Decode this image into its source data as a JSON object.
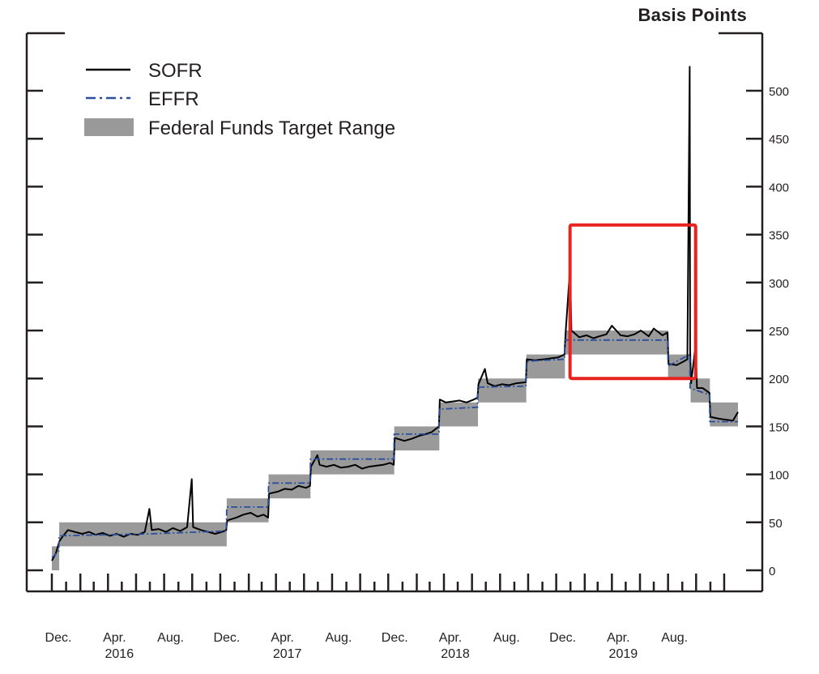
{
  "chart_data": {
    "type": "line",
    "title": "",
    "ylabel": "Basis Points",
    "ylim": [
      0,
      550
    ],
    "yticks": [
      0,
      50,
      100,
      150,
      200,
      250,
      300,
      350,
      400,
      450,
      500
    ],
    "xlim": [
      "2015-12-01",
      "2019-12-31"
    ],
    "x_tick_labels": [
      {
        "date": "2015-12-01",
        "month": "Dec.",
        "year": ""
      },
      {
        "date": "2016-04-01",
        "month": "Apr.",
        "year": "2016"
      },
      {
        "date": "2016-08-01",
        "month": "Aug.",
        "year": ""
      },
      {
        "date": "2016-12-01",
        "month": "Dec.",
        "year": ""
      },
      {
        "date": "2017-04-01",
        "month": "Apr.",
        "year": "2017"
      },
      {
        "date": "2017-08-01",
        "month": "Aug.",
        "year": ""
      },
      {
        "date": "2017-12-01",
        "month": "Dec.",
        "year": ""
      },
      {
        "date": "2018-04-01",
        "month": "Apr.",
        "year": "2018"
      },
      {
        "date": "2018-08-01",
        "month": "Aug.",
        "year": ""
      },
      {
        "date": "2018-12-01",
        "month": "Dec.",
        "year": ""
      },
      {
        "date": "2019-04-01",
        "month": "Apr.",
        "year": "2019"
      },
      {
        "date": "2019-08-01",
        "month": "Aug.",
        "year": ""
      }
    ],
    "legend": {
      "position": "top-left",
      "entries": [
        {
          "label": "SOFR",
          "style": "solid",
          "color": "#000000"
        },
        {
          "label": "EFFR",
          "style": "dash-dot",
          "color": "#2b4fa0"
        },
        {
          "label": "Federal Funds Target Range",
          "style": "band",
          "color": "#9a9a9a"
        }
      ]
    },
    "target_range": [
      {
        "start": "2015-12-01",
        "end": "2015-12-17",
        "low": 0,
        "high": 25
      },
      {
        "start": "2015-12-17",
        "end": "2016-12-15",
        "low": 25,
        "high": 50
      },
      {
        "start": "2016-12-15",
        "end": "2017-03-16",
        "low": 50,
        "high": 75
      },
      {
        "start": "2017-03-16",
        "end": "2017-06-15",
        "low": 75,
        "high": 100
      },
      {
        "start": "2017-06-15",
        "end": "2017-12-14",
        "low": 100,
        "high": 125
      },
      {
        "start": "2017-12-14",
        "end": "2018-03-22",
        "low": 125,
        "high": 150
      },
      {
        "start": "2018-03-22",
        "end": "2018-06-14",
        "low": 150,
        "high": 175
      },
      {
        "start": "2018-06-14",
        "end": "2018-09-27",
        "low": 175,
        "high": 200
      },
      {
        "start": "2018-09-27",
        "end": "2018-12-20",
        "low": 200,
        "high": 225
      },
      {
        "start": "2018-12-20",
        "end": "2019-08-01",
        "low": 225,
        "high": 250
      },
      {
        "start": "2019-08-01",
        "end": "2019-09-19",
        "low": 200,
        "high": 225
      },
      {
        "start": "2019-09-19",
        "end": "2019-10-31",
        "low": 175,
        "high": 200
      },
      {
        "start": "2019-10-31",
        "end": "2019-12-31",
        "low": 150,
        "high": 175
      }
    ],
    "series": [
      {
        "name": "SOFR",
        "points": [
          [
            "2015-12-01",
            10
          ],
          [
            "2015-12-10",
            18
          ],
          [
            "2015-12-17",
            30
          ],
          [
            "2015-12-24",
            35
          ],
          [
            "2016-01-05",
            42
          ],
          [
            "2016-01-20",
            40
          ],
          [
            "2016-02-05",
            38
          ],
          [
            "2016-02-20",
            40
          ],
          [
            "2016-03-05",
            37
          ],
          [
            "2016-03-20",
            39
          ],
          [
            "2016-04-05",
            36
          ],
          [
            "2016-04-20",
            38
          ],
          [
            "2016-05-05",
            35
          ],
          [
            "2016-05-20",
            38
          ],
          [
            "2016-06-05",
            37
          ],
          [
            "2016-06-20",
            40
          ],
          [
            "2016-06-30",
            64
          ],
          [
            "2016-07-05",
            42
          ],
          [
            "2016-07-20",
            43
          ],
          [
            "2016-08-05",
            40
          ],
          [
            "2016-08-20",
            44
          ],
          [
            "2016-09-05",
            41
          ],
          [
            "2016-09-20",
            45
          ],
          [
            "2016-09-30",
            95
          ],
          [
            "2016-10-03",
            45
          ],
          [
            "2016-10-20",
            42
          ],
          [
            "2016-11-05",
            40
          ],
          [
            "2016-11-20",
            38
          ],
          [
            "2016-12-05",
            40
          ],
          [
            "2016-12-14",
            42
          ],
          [
            "2016-12-16",
            52
          ],
          [
            "2017-01-05",
            55
          ],
          [
            "2017-01-20",
            58
          ],
          [
            "2017-02-05",
            60
          ],
          [
            "2017-02-20",
            56
          ],
          [
            "2017-03-05",
            58
          ],
          [
            "2017-03-15",
            55
          ],
          [
            "2017-03-17",
            80
          ],
          [
            "2017-04-05",
            82
          ],
          [
            "2017-04-20",
            85
          ],
          [
            "2017-05-05",
            84
          ],
          [
            "2017-05-20",
            88
          ],
          [
            "2017-06-05",
            86
          ],
          [
            "2017-06-14",
            88
          ],
          [
            "2017-06-16",
            108
          ],
          [
            "2017-06-30",
            120
          ],
          [
            "2017-07-05",
            110
          ],
          [
            "2017-07-20",
            108
          ],
          [
            "2017-08-05",
            110
          ],
          [
            "2017-08-20",
            107
          ],
          [
            "2017-09-05",
            108
          ],
          [
            "2017-09-20",
            110
          ],
          [
            "2017-10-05",
            106
          ],
          [
            "2017-10-20",
            108
          ],
          [
            "2017-11-05",
            109
          ],
          [
            "2017-11-20",
            110
          ],
          [
            "2017-12-05",
            112
          ],
          [
            "2017-12-13",
            110
          ],
          [
            "2017-12-15",
            138
          ],
          [
            "2018-01-05",
            135
          ],
          [
            "2018-01-20",
            137
          ],
          [
            "2018-02-05",
            140
          ],
          [
            "2018-02-20",
            142
          ],
          [
            "2018-03-05",
            144
          ],
          [
            "2018-03-21",
            150
          ],
          [
            "2018-03-23",
            178
          ],
          [
            "2018-04-05",
            175
          ],
          [
            "2018-04-20",
            176
          ],
          [
            "2018-05-05",
            177
          ],
          [
            "2018-05-20",
            175
          ],
          [
            "2018-06-05",
            178
          ],
          [
            "2018-06-13",
            180
          ],
          [
            "2018-06-15",
            194
          ],
          [
            "2018-06-29",
            210
          ],
          [
            "2018-07-05",
            195
          ],
          [
            "2018-07-20",
            192
          ],
          [
            "2018-08-05",
            194
          ],
          [
            "2018-08-20",
            193
          ],
          [
            "2018-09-05",
            195
          ],
          [
            "2018-09-26",
            196
          ],
          [
            "2018-09-28",
            220
          ],
          [
            "2018-10-15",
            219
          ],
          [
            "2018-11-05",
            220
          ],
          [
            "2018-11-20",
            221
          ],
          [
            "2018-12-05",
            222
          ],
          [
            "2018-12-19",
            225
          ],
          [
            "2018-12-21",
            245
          ],
          [
            "2018-12-31",
            315
          ],
          [
            "2019-01-03",
            250
          ],
          [
            "2019-01-20",
            243
          ],
          [
            "2019-02-05",
            245
          ],
          [
            "2019-02-20",
            242
          ],
          [
            "2019-03-05",
            244
          ],
          [
            "2019-03-20",
            246
          ],
          [
            "2019-04-01",
            255
          ],
          [
            "2019-04-20",
            245
          ],
          [
            "2019-05-05",
            244
          ],
          [
            "2019-05-20",
            246
          ],
          [
            "2019-06-03",
            250
          ],
          [
            "2019-06-20",
            244
          ],
          [
            "2019-07-01",
            252
          ],
          [
            "2019-07-20",
            245
          ],
          [
            "2019-07-31",
            248
          ],
          [
            "2019-08-02",
            215
          ],
          [
            "2019-08-20",
            214
          ],
          [
            "2019-09-05",
            218
          ],
          [
            "2019-09-12",
            220
          ],
          [
            "2019-09-17",
            525
          ],
          [
            "2019-09-18",
            230
          ],
          [
            "2019-09-20",
            195
          ],
          [
            "2019-09-30",
            235
          ],
          [
            "2019-10-03",
            190
          ],
          [
            "2019-10-15",
            190
          ],
          [
            "2019-10-30",
            185
          ],
          [
            "2019-11-01",
            160
          ],
          [
            "2019-11-20",
            158
          ],
          [
            "2019-12-05",
            157
          ],
          [
            "2019-12-20",
            156
          ],
          [
            "2019-12-31",
            165
          ]
        ]
      },
      {
        "name": "EFFR",
        "points": [
          [
            "2015-12-01",
            13
          ],
          [
            "2015-12-16",
            20
          ],
          [
            "2015-12-17",
            36
          ],
          [
            "2016-06-30",
            38
          ],
          [
            "2016-12-14",
            41
          ],
          [
            "2016-12-15",
            66
          ],
          [
            "2017-03-15",
            66
          ],
          [
            "2017-03-16",
            91
          ],
          [
            "2017-06-14",
            91
          ],
          [
            "2017-06-15",
            116
          ],
          [
            "2017-12-13",
            116
          ],
          [
            "2017-12-14",
            142
          ],
          [
            "2018-03-21",
            142
          ],
          [
            "2018-03-22",
            168
          ],
          [
            "2018-06-13",
            170
          ],
          [
            "2018-06-14",
            191
          ],
          [
            "2018-09-26",
            192
          ],
          [
            "2018-09-27",
            218
          ],
          [
            "2018-12-19",
            220
          ],
          [
            "2018-12-20",
            240
          ],
          [
            "2019-07-31",
            240
          ],
          [
            "2019-08-01",
            213
          ],
          [
            "2019-09-17",
            225
          ],
          [
            "2019-09-18",
            190
          ],
          [
            "2019-10-30",
            183
          ],
          [
            "2019-10-31",
            155
          ],
          [
            "2019-12-31",
            155
          ]
        ]
      }
    ],
    "annotations": [
      {
        "type": "highlight-box",
        "color": "#e8231f",
        "x_start": "2018-12-31",
        "x_end": "2019-09-30",
        "y_low": 200,
        "y_high": 360
      }
    ]
  }
}
